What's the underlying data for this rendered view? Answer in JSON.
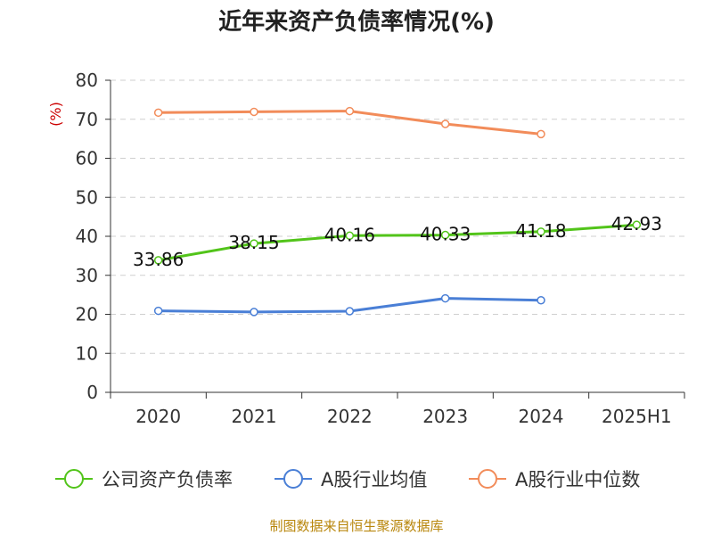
{
  "chart_data": {
    "type": "line",
    "title": "近年来资产负债率情况(%)",
    "ylabel": "(%)",
    "xlabel": "",
    "categories": [
      "2020",
      "2021",
      "2022",
      "2023",
      "2024",
      "2025H1"
    ],
    "ylim": [
      0,
      80
    ],
    "yticks": [
      0,
      10,
      20,
      30,
      40,
      50,
      60,
      70,
      80
    ],
    "grid": true,
    "legend_position": "bottom",
    "series": [
      {
        "name": "公司资产负债率",
        "color": "#52c41a",
        "values": [
          33.86,
          38.15,
          40.16,
          40.33,
          41.18,
          42.93
        ],
        "labels": [
          "33.86",
          "38.15",
          "40.16",
          "40.33",
          "41.18",
          "42.93"
        ]
      },
      {
        "name": "A股行业均值",
        "color": "#4a7fd6",
        "values": [
          20.9,
          20.6,
          20.8,
          24.1,
          23.6,
          null
        ],
        "labels": []
      },
      {
        "name": "A股行业中位数",
        "color": "#f28c5a",
        "values": [
          71.7,
          71.9,
          72.1,
          68.8,
          66.2,
          null
        ],
        "labels": []
      }
    ]
  },
  "source_text": "制图数据来自恒生聚源数据库"
}
